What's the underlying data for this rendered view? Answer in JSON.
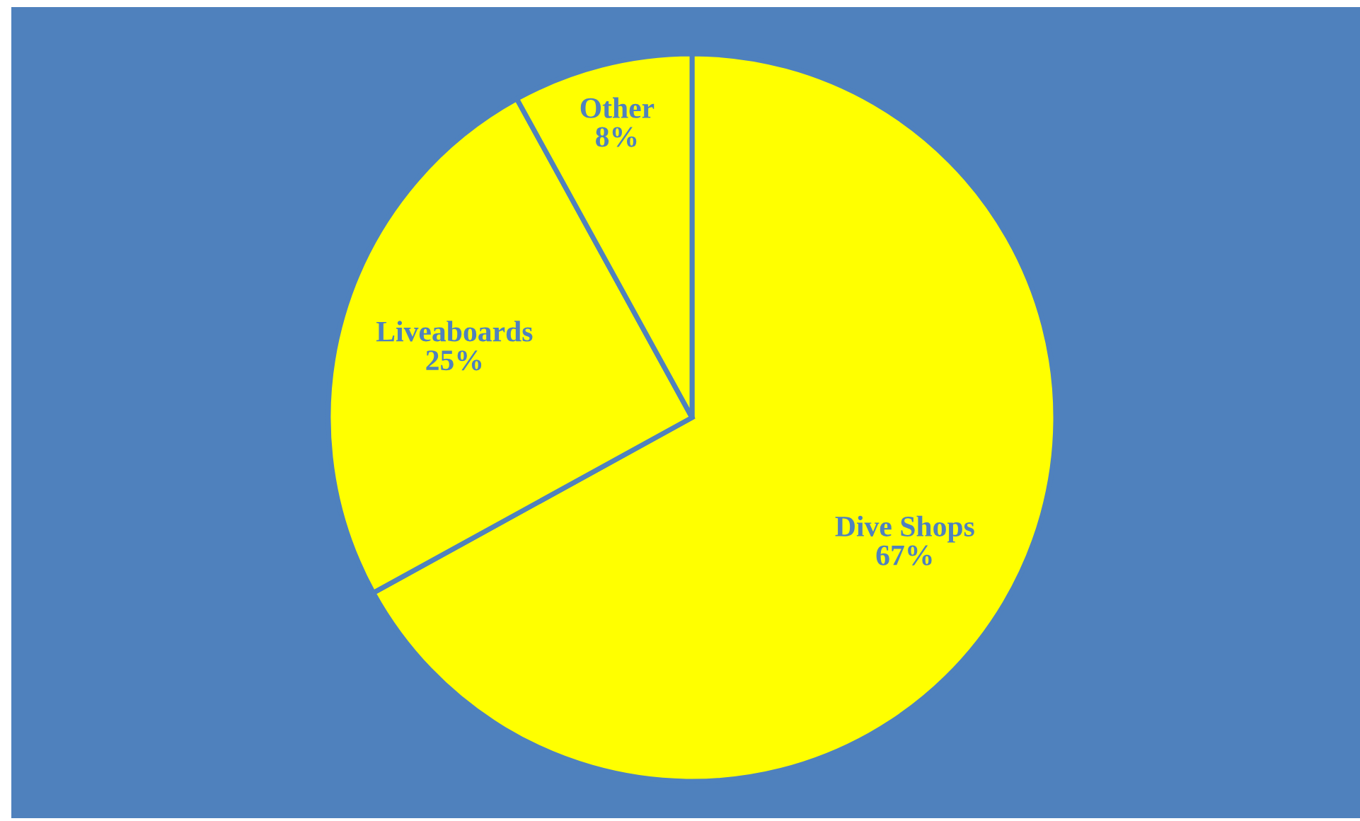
{
  "chart_data": {
    "type": "pie",
    "categories": [
      "Dive Shops",
      "Liveaboards",
      "Other"
    ],
    "values": [
      67,
      25,
      8
    ],
    "value_labels": [
      "67%",
      "25%",
      "8%"
    ],
    "colors": [
      "#ffff00",
      "#ffff00",
      "#ffff00"
    ],
    "legend": false
  }
}
